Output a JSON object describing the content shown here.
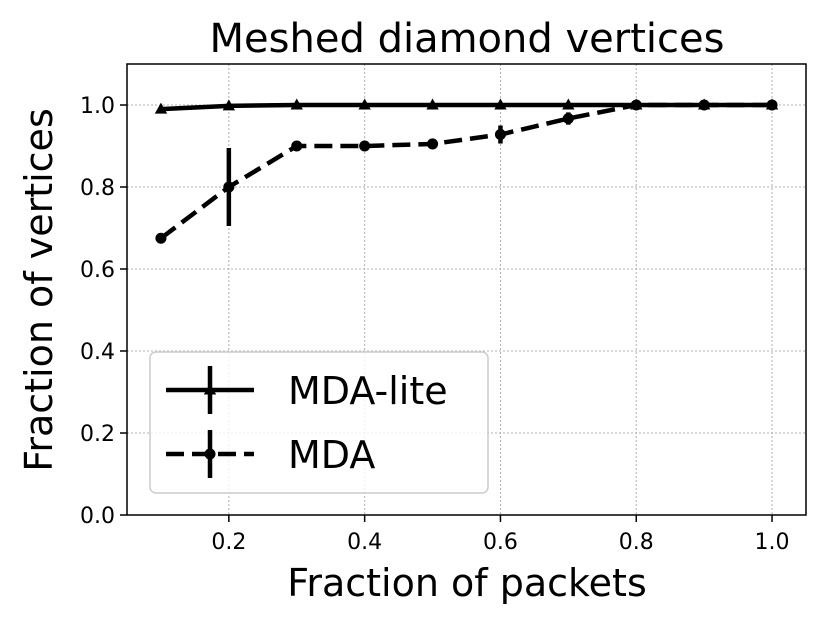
{
  "chart_data": {
    "type": "line",
    "title": "Meshed diamond vertices",
    "xlabel": "Fraction of packets",
    "ylabel": "Fraction of vertices",
    "xlim": [
      0.05,
      1.05
    ],
    "ylim": [
      0.0,
      1.1
    ],
    "xticks": [
      0.2,
      0.4,
      0.6,
      0.8,
      1.0
    ],
    "xtick_labels": [
      "0.2",
      "0.4",
      "0.6",
      "0.8",
      "1.0"
    ],
    "yticks": [
      0.0,
      0.2,
      0.4,
      0.6,
      0.8,
      1.0
    ],
    "ytick_labels": [
      "0.0",
      "0.2",
      "0.4",
      "0.6",
      "0.8",
      "1.0"
    ],
    "grid": true,
    "legend_position": "lower-left",
    "series": [
      {
        "name": "MDA-lite",
        "line_style": "solid",
        "marker": "triangle",
        "color": "#000000",
        "x": [
          0.1,
          0.2,
          0.3,
          0.4,
          0.5,
          0.6,
          0.7,
          0.8,
          0.9,
          1.0
        ],
        "y": [
          0.99,
          0.998,
          1.0,
          1.0,
          1.0,
          1.0,
          1.0,
          1.0,
          1.0,
          1.0
        ],
        "err": [
          0.005,
          0.003,
          0,
          0,
          0,
          0,
          0,
          0,
          0,
          0
        ]
      },
      {
        "name": "MDA",
        "line_style": "dashed",
        "marker": "circle",
        "color": "#000000",
        "x": [
          0.1,
          0.2,
          0.3,
          0.4,
          0.5,
          0.6,
          0.7,
          0.8,
          0.9,
          1.0
        ],
        "y": [
          0.675,
          0.8,
          0.9,
          0.9,
          0.905,
          0.928,
          0.967,
          1.0,
          1.0,
          1.0
        ],
        "err": [
          0,
          0.095,
          0,
          0,
          0,
          0.022,
          0.015,
          0,
          0,
          0
        ]
      }
    ]
  }
}
